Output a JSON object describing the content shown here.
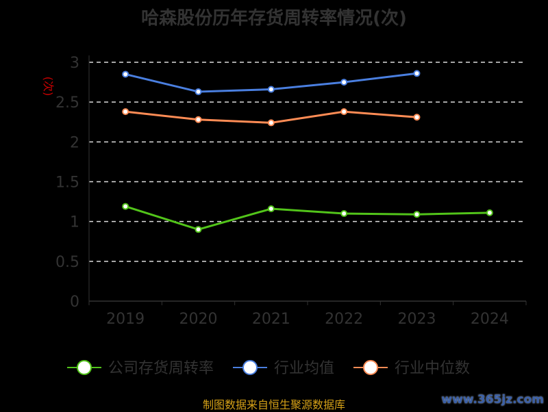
{
  "chart_data": {
    "type": "line",
    "title": "哈森股份历年存货周转率情况(次)",
    "ylabel": "(次)",
    "categories": [
      "2019",
      "2020",
      "2021",
      "2022",
      "2023",
      "2024"
    ],
    "ylim": [
      0,
      3
    ],
    "yticks": [
      "0",
      "0.5",
      "1",
      "1.5",
      "2",
      "2.5",
      "3"
    ],
    "grid": true,
    "legend_position": "bottom",
    "series": [
      {
        "name": "公司存货周转率",
        "color": "#52c41a",
        "values": [
          1.19,
          0.9,
          1.16,
          1.1,
          1.09,
          1.11
        ]
      },
      {
        "name": "行业均值",
        "color": "#4a7fe0",
        "values": [
          2.85,
          2.63,
          2.66,
          2.75,
          2.86,
          null
        ]
      },
      {
        "name": "行业中位数",
        "color": "#ff8c55",
        "values": [
          2.38,
          2.28,
          2.24,
          2.38,
          2.31,
          null
        ]
      }
    ]
  },
  "footer": {
    "source": "制图数据来自恒生聚源数据库",
    "watermark": "www.365jz.com"
  }
}
